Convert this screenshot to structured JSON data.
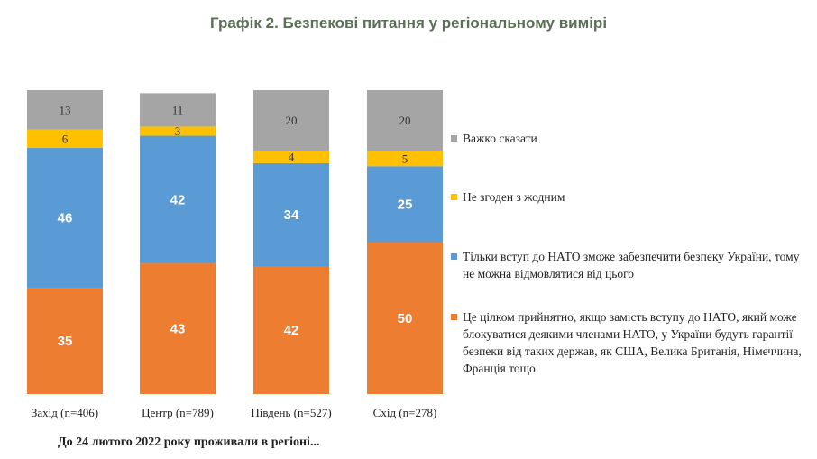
{
  "chart_data": {
    "type": "bar",
    "stacked": true,
    "title": "Графік 2. Безпекові питання у регіональному вимірі",
    "xlabel": "До 24 лютого 2022 року проживали в регіоні...",
    "ylabel": "",
    "ylim": [
      0,
      100
    ],
    "grid": false,
    "legend_position": "right",
    "categories": [
      "Захід (n=406)",
      "Центр (n=789)",
      "Південь (n=527)",
      "Схід (n=278)"
    ],
    "series": [
      {
        "name": "Це цілком прийнятно, якщо замість вступу до НАТО, який може блокуватися деякими членами НАТО, у України будуть гарантії безпеки від таких держав, як США, Велика Британія, Німеччина, Франція тощо",
        "color": "#ed7d31",
        "values": [
          35,
          43,
          42,
          50
        ]
      },
      {
        "name": "Тільки вступ до НАТО зможе забезпечити безпеку України, тому не можна відмовлятися від цього",
        "color": "#5b9bd5",
        "values": [
          46,
          42,
          34,
          25
        ]
      },
      {
        "name": "Не згоден з жодним",
        "color": "#ffc000",
        "values": [
          6,
          3,
          4,
          5
        ]
      },
      {
        "name": "Важко сказати",
        "color": "#a5a5a5",
        "values": [
          13,
          11,
          20,
          20
        ]
      }
    ]
  }
}
